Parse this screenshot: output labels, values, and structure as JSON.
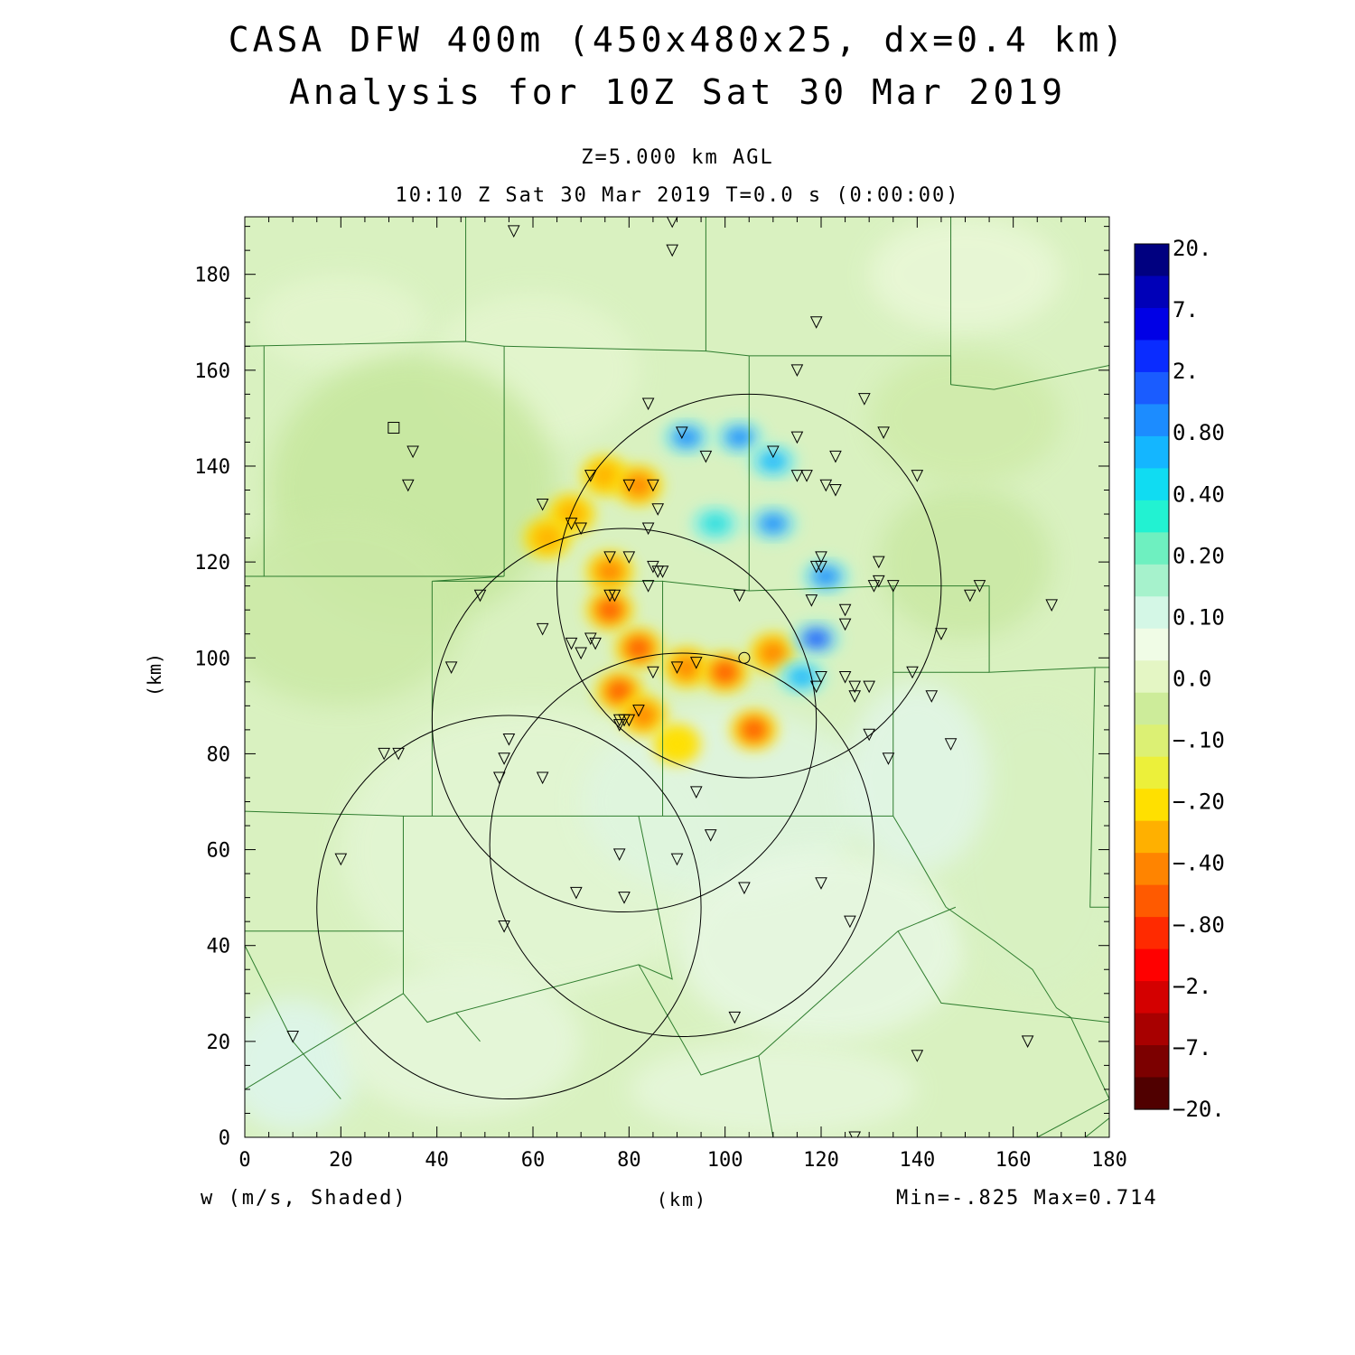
{
  "title": {
    "line1": "CASA DFW 400m (450x480x25, dx=0.4 km)",
    "line2": "Analysis for 10Z Sat 30 Mar 2019"
  },
  "subtitle": {
    "level": "Z=5.000 km AGL",
    "time": "10:10 Z Sat 30 Mar 2019    T=0.0 s (0:00:00)"
  },
  "footer": {
    "field": "w (m/s, Shaded)",
    "xunit": "(km)",
    "minmax": "Min=-.825 Max=0.714"
  },
  "chart_data": {
    "type": "heatmap",
    "field": "w (m/s, Shaded)",
    "xlabel": "(km)",
    "ylabel": "(km)",
    "xlim": [
      0,
      180
    ],
    "ylim": [
      0,
      192
    ],
    "x_ticks": [
      0,
      20,
      40,
      60,
      80,
      100,
      120,
      140,
      160,
      180
    ],
    "y_ticks": [
      0,
      20,
      40,
      60,
      80,
      100,
      120,
      140,
      160,
      180
    ],
    "colorbar": {
      "labels": [
        "20.",
        "7.",
        "2.",
        "0.80",
        "0.40",
        "0.20",
        "0.10",
        "0.0",
        "-.10",
        "-.20",
        "-.40",
        "-.80",
        "-2.",
        "-7.",
        "-20."
      ],
      "colors": [
        "#000080",
        "#0000b8",
        "#0000e6",
        "#0a2cff",
        "#1a5cff",
        "#1c8cff",
        "#14b6ff",
        "#10dcf2",
        "#22f2d2",
        "#6ef0c0",
        "#a6f2cc",
        "#d4f7e6",
        "#f0fce6",
        "#e4f6c4",
        "#cdec9a",
        "#dcf074",
        "#ecf03a",
        "#ffe000",
        "#ffb000",
        "#ff8400",
        "#ff5a00",
        "#ff2a00",
        "#ff0000",
        "#d40000",
        "#a80000",
        "#7c0000",
        "#500000"
      ]
    },
    "min": -0.825,
    "max": 0.714,
    "radar_rings": [
      {
        "cx": 105,
        "cy": 115,
        "r": 40
      },
      {
        "cx": 79,
        "cy": 87,
        "r": 40
      },
      {
        "cx": 91,
        "cy": 61,
        "r": 40
      },
      {
        "cx": 55,
        "cy": 48,
        "r": 40
      }
    ],
    "updraft_regions": [
      {
        "x": 68,
        "y": 130,
        "w": -0.35
      },
      {
        "x": 75,
        "y": 138,
        "w": -0.4
      },
      {
        "x": 82,
        "y": 136,
        "w": -0.5
      },
      {
        "x": 63,
        "y": 125,
        "w": -0.4
      },
      {
        "x": 76,
        "y": 118,
        "w": -0.5
      },
      {
        "x": 76,
        "y": 110,
        "w": -0.6
      },
      {
        "x": 82,
        "y": 102,
        "w": -0.7
      },
      {
        "x": 78,
        "y": 93,
        "w": -0.6
      },
      {
        "x": 83,
        "y": 88,
        "w": -0.5
      },
      {
        "x": 92,
        "y": 98,
        "w": -0.5
      },
      {
        "x": 100,
        "y": 97,
        "w": -0.6
      },
      {
        "x": 110,
        "y": 101,
        "w": -0.5
      },
      {
        "x": 106,
        "y": 85,
        "w": -0.6
      },
      {
        "x": 90,
        "y": 82,
        "w": -0.3
      }
    ],
    "updown_positive_regions": [
      {
        "x": 92,
        "y": 146,
        "w": 0.5
      },
      {
        "x": 103,
        "y": 146,
        "w": 0.6
      },
      {
        "x": 110,
        "y": 141,
        "w": 0.4
      },
      {
        "x": 110,
        "y": 128,
        "w": 0.5
      },
      {
        "x": 98,
        "y": 128,
        "w": 0.3
      },
      {
        "x": 121,
        "y": 117,
        "w": 0.5
      },
      {
        "x": 119,
        "y": 104,
        "w": 0.7
      },
      {
        "x": 116,
        "y": 96,
        "w": 0.4
      }
    ],
    "station_markers": [
      [
        56,
        189
      ],
      [
        89,
        191
      ],
      [
        89,
        185
      ],
      [
        119,
        170
      ],
      [
        115,
        160
      ],
      [
        84,
        153
      ],
      [
        129,
        154
      ],
      [
        91,
        147
      ],
      [
        133,
        147
      ],
      [
        115,
        146
      ],
      [
        35,
        143
      ],
      [
        96,
        142
      ],
      [
        110,
        143
      ],
      [
        123,
        142
      ],
      [
        72,
        138
      ],
      [
        115,
        138
      ],
      [
        80,
        136
      ],
      [
        117,
        138
      ],
      [
        121,
        136
      ],
      [
        123,
        135
      ],
      [
        140,
        138
      ],
      [
        85,
        136
      ],
      [
        34,
        136
      ],
      [
        62,
        132
      ],
      [
        86,
        131
      ],
      [
        68,
        128
      ],
      [
        70,
        127
      ],
      [
        84,
        127
      ],
      [
        76,
        121
      ],
      [
        80,
        121
      ],
      [
        120,
        121
      ],
      [
        119,
        119
      ],
      [
        120,
        119
      ],
      [
        85,
        119
      ],
      [
        86,
        118
      ],
      [
        87,
        118
      ],
      [
        132,
        120
      ],
      [
        131,
        115
      ],
      [
        132,
        116
      ],
      [
        135,
        115
      ],
      [
        84,
        115
      ],
      [
        153,
        115
      ],
      [
        76,
        113
      ],
      [
        77,
        113
      ],
      [
        103,
        113
      ],
      [
        118,
        112
      ],
      [
        125,
        110
      ],
      [
        151,
        113
      ],
      [
        168,
        111
      ],
      [
        49,
        113
      ],
      [
        125,
        107
      ],
      [
        62,
        106
      ],
      [
        145,
        105
      ],
      [
        72,
        104
      ],
      [
        70,
        101
      ],
      [
        73,
        103
      ],
      [
        68,
        103
      ],
      [
        43,
        98
      ],
      [
        85,
        97
      ],
      [
        90,
        98
      ],
      [
        94,
        99
      ],
      [
        120,
        96
      ],
      [
        125,
        96
      ],
      [
        130,
        94
      ],
      [
        127,
        94
      ],
      [
        119,
        94
      ],
      [
        127,
        92
      ],
      [
        139,
        97
      ],
      [
        143,
        92
      ],
      [
        82,
        89
      ],
      [
        79,
        87
      ],
      [
        80,
        87
      ],
      [
        78,
        86
      ],
      [
        78,
        87
      ],
      [
        130,
        84
      ],
      [
        147,
        82
      ],
      [
        55,
        83
      ],
      [
        32,
        80
      ],
      [
        29,
        80
      ],
      [
        54,
        79
      ],
      [
        134,
        79
      ],
      [
        62,
        75
      ],
      [
        53,
        75
      ],
      [
        94,
        72
      ],
      [
        97,
        63
      ],
      [
        78,
        59
      ],
      [
        90,
        58
      ],
      [
        20,
        58
      ],
      [
        120,
        53
      ],
      [
        104,
        52
      ],
      [
        69,
        51
      ],
      [
        79,
        50
      ],
      [
        54,
        44
      ],
      [
        126,
        45
      ],
      [
        10,
        21
      ],
      [
        102,
        25
      ],
      [
        140,
        17
      ],
      [
        163,
        20
      ],
      [
        127,
        0
      ]
    ],
    "square_marker": [
      31,
      148
    ],
    "circle_marker": [
      104,
      100
    ]
  }
}
